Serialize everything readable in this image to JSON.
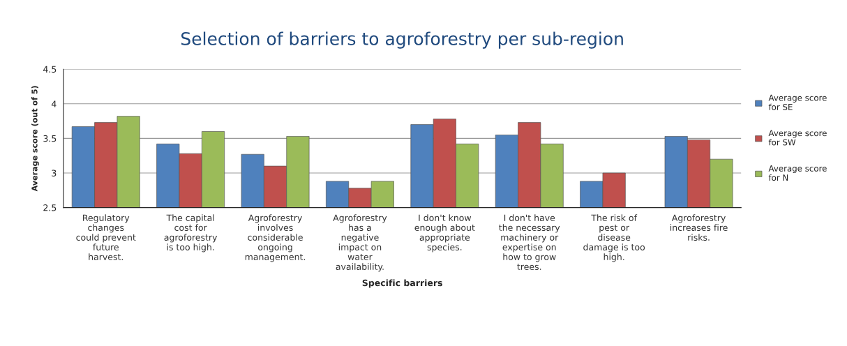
{
  "chart_data": {
    "type": "bar",
    "title": "Selection of barriers to agroforestry per sub-region",
    "xlabel": "Specific barriers",
    "ylabel": "Average score (out of 5)",
    "categories": [
      "Regulatory\nchanges\ncould prevent\nfuture\nharvest.",
      "The capital\ncost for\nagroforestry\nis too high.",
      "Agroforestry\ninvolves\nconsiderable\nongoing\nmanagement.",
      "Agroforestry\nhas a\nnegative\nimpact on\nwater\navailability.",
      "I don't know\nenough about\nappropriate\nspecies.",
      "I don't have\nthe necessary\nmachinery or\nexpertise on\nhow to grow\ntrees.",
      "The risk of\npest or\ndisease\ndamage is too\nhigh.",
      "Agroforestry\nincreases fire\nrisks."
    ],
    "series": [
      {
        "name": "Average score\nfor SE",
        "color": "#4f81bd",
        "values": [
          3.67,
          3.42,
          3.27,
          2.88,
          3.7,
          3.55,
          2.88,
          3.53
        ]
      },
      {
        "name": "Average score\nfor SW",
        "color": "#c0504d",
        "values": [
          3.73,
          3.28,
          3.1,
          2.78,
          3.78,
          3.73,
          3.0,
          3.48
        ]
      },
      {
        "name": "Average score\nfor N",
        "color": "#9bbb59",
        "values": [
          3.82,
          3.6,
          3.53,
          2.88,
          3.42,
          3.42,
          null,
          3.2
        ]
      }
    ],
    "ylim": [
      2.5,
      4.5
    ],
    "yticks": [
      2.5,
      3,
      3.5,
      4,
      4.5
    ],
    "grid": "y",
    "legend": "right"
  }
}
